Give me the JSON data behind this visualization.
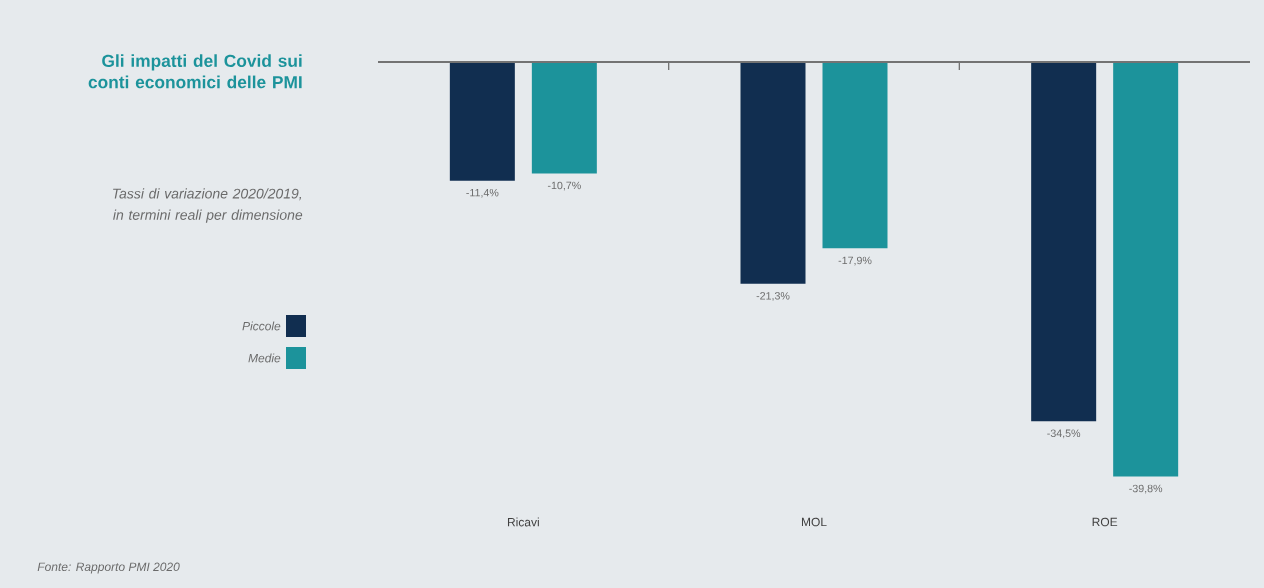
{
  "chart_data": {
    "type": "bar",
    "title": "Gli impatti del Covid sui conti economici delle PMI",
    "subtitle": "Tassi di variazione 2020/2019, in termini reali per dimensione",
    "annotations": [
      "Fonte: Rapporto PMI 2020"
    ],
    "categories": [
      "Ricavi",
      "MOL",
      "ROE"
    ],
    "series": [
      {
        "name": "Piccole",
        "color": "#112e50",
        "values": [
          -11.4,
          -21.3,
          -34.5
        ],
        "value_labels": [
          "-11,4%",
          "-21,3%",
          "-34,5%"
        ]
      },
      {
        "name": "Medie",
        "color": "#1c939b",
        "values": [
          -10.7,
          -17.9,
          -39.8
        ],
        "value_labels": [
          "-10,7%",
          "-17,9%",
          "-39,8%"
        ]
      }
    ],
    "legend": "left"
  }
}
